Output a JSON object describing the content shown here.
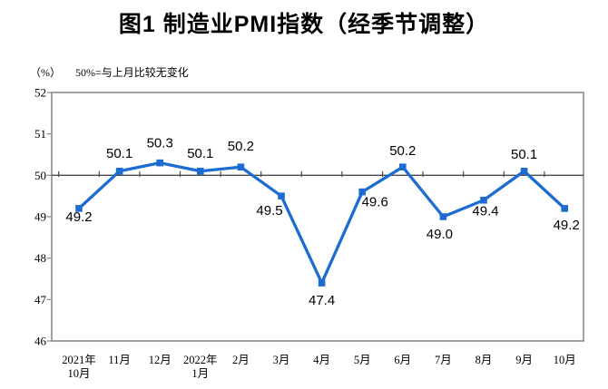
{
  "figure": {
    "title": "图1 制造业PMI指数（经季节调整）",
    "unit_label": "（%）",
    "note": "50%=与上月比较无变化"
  },
  "chart_data": {
    "type": "line",
    "title": "图1 制造业PMI指数（经季节调整）",
    "ylabel": "%",
    "xlabel": "",
    "note": "50%=与上月比较无变化",
    "categories": [
      "2021年\n10月",
      "11月",
      "12月",
      "2022年\n1月",
      "2月",
      "3月",
      "4月",
      "5月",
      "6月",
      "7月",
      "8月",
      "9月",
      "10月"
    ],
    "series": [
      {
        "name": "制造业PMI",
        "values": [
          49.2,
          50.1,
          50.3,
          50.1,
          50.2,
          49.5,
          47.4,
          49.6,
          50.2,
          49.0,
          49.4,
          50.1,
          49.2
        ],
        "labels": [
          "49.2",
          "50.1",
          "50.3",
          "50.1",
          "50.2",
          "49.5",
          "47.4",
          "49.6",
          "50.2",
          "49.0",
          "49.4",
          "50.1",
          "49.2"
        ]
      }
    ],
    "ylim": [
      46,
      52
    ],
    "yticks": [
      "46",
      "47",
      "48",
      "49",
      "50",
      "51",
      "52"
    ],
    "reference_line": 50,
    "grid": false,
    "legend": false,
    "colors": {
      "line": "#1C6CD2",
      "marker": "#1C6CD2",
      "frame": "#8A8A8A",
      "reference_line": "#4A4A4A",
      "text": "#000000"
    }
  }
}
